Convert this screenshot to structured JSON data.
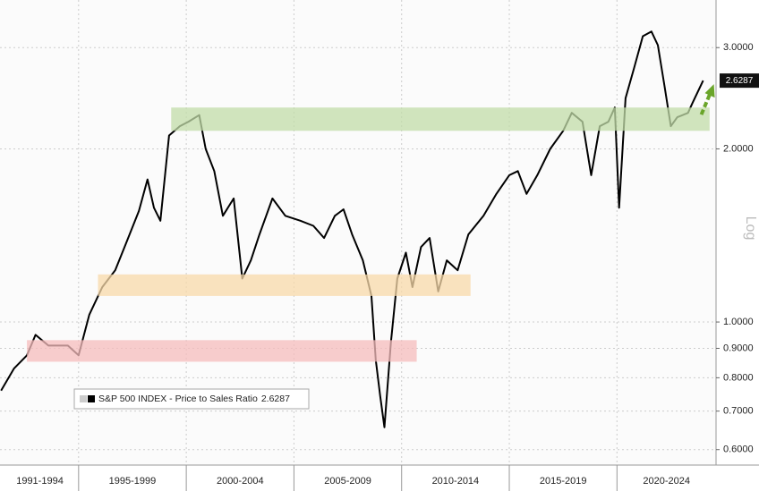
{
  "chart_data": {
    "type": "line",
    "log_scale": true,
    "ylabel": "Log",
    "grid": true,
    "legend_position": "bottom-left",
    "series": [
      {
        "name": "S&P 500 INDEX - Price to Sales Ratio",
        "color": "#000000",
        "x": [
          1991.4,
          1992.0,
          1992.6,
          1993.0,
          1993.6,
          1994.5,
          1995.0,
          1995.5,
          1996.1,
          1996.7,
          1997.2,
          1997.8,
          1998.2,
          1998.5,
          1998.8,
          1999.2,
          1999.7,
          2000.1,
          2000.6,
          2000.9,
          2001.3,
          2001.7,
          2002.2,
          2002.6,
          2003.0,
          2003.4,
          2004.0,
          2004.6,
          2005.3,
          2005.9,
          2006.4,
          2006.9,
          2007.3,
          2007.7,
          2008.2,
          2008.6,
          2008.8,
          2009.0,
          2009.2,
          2009.5,
          2009.8,
          2010.2,
          2010.5,
          2010.9,
          2011.3,
          2011.7,
          2012.1,
          2012.6,
          2013.1,
          2013.8,
          2014.4,
          2015.0,
          2015.4,
          2015.8,
          2016.3,
          2016.9,
          2017.5,
          2017.9,
          2018.4,
          2018.8,
          2019.2,
          2019.6,
          2019.9,
          2020.1,
          2020.4,
          2020.8,
          2021.2,
          2021.6,
          2021.9,
          2022.2,
          2022.5,
          2022.8,
          2023.3,
          2023.5,
          2024.0
        ],
        "values": [
          0.76,
          0.83,
          0.875,
          0.95,
          0.91,
          0.91,
          0.875,
          1.03,
          1.15,
          1.23,
          1.37,
          1.56,
          1.77,
          1.58,
          1.5,
          2.11,
          2.19,
          2.23,
          2.29,
          2.0,
          1.83,
          1.53,
          1.64,
          1.19,
          1.28,
          1.42,
          1.64,
          1.53,
          1.5,
          1.47,
          1.4,
          1.53,
          1.57,
          1.42,
          1.28,
          1.11,
          0.86,
          0.745,
          0.656,
          0.92,
          1.19,
          1.32,
          1.15,
          1.35,
          1.4,
          1.13,
          1.28,
          1.23,
          1.42,
          1.53,
          1.67,
          1.8,
          1.83,
          1.67,
          1.8,
          2.0,
          2.15,
          2.31,
          2.23,
          1.8,
          2.19,
          2.23,
          2.36,
          1.58,
          2.45,
          2.77,
          3.14,
          3.2,
          3.03,
          2.58,
          2.19,
          2.27,
          2.31,
          2.4,
          2.6287
        ]
      }
    ],
    "bands": [
      {
        "x": [
          1999.3,
          2024.3
        ],
        "y": [
          2.15,
          2.36
        ],
        "color": "#c2dca8"
      },
      {
        "x": [
          1995.9,
          2013.2
        ],
        "y": [
          1.11,
          1.21
        ],
        "color": "#f8d9aa"
      },
      {
        "x": [
          1992.6,
          2010.7
        ],
        "y": [
          0.853,
          0.93
        ],
        "color": "#f5bcbc"
      }
    ],
    "xlim": [
      1991.35,
      2024.6
    ],
    "ylim": [
      0.564,
      3.63
    ],
    "yticks": [
      {
        "value": 3,
        "label": "3.0000"
      },
      {
        "value": 2,
        "label": "2.0000"
      },
      {
        "value": 1,
        "label": "1.0000"
      },
      {
        "value": 0.9,
        "label": "0.9000"
      },
      {
        "value": 0.8,
        "label": "0.8000"
      },
      {
        "value": 0.7,
        "label": "0.7000"
      },
      {
        "value": 0.6,
        "label": "0.6000"
      }
    ],
    "x_separators": [
      1995,
      2000,
      2005,
      2010,
      2015,
      2020
    ],
    "xticks": [
      {
        "value": 1993.2,
        "label": "1991-1994"
      },
      {
        "value": 1997.5,
        "label": "1995-1999"
      },
      {
        "value": 2002.5,
        "label": "2000-2004"
      },
      {
        "value": 2007.5,
        "label": "2005-2009"
      },
      {
        "value": 2012.5,
        "label": "2010-2014"
      },
      {
        "value": 2017.5,
        "label": "2015-2019"
      },
      {
        "value": 2022.3,
        "label": "2020-2024"
      }
    ]
  }
}
